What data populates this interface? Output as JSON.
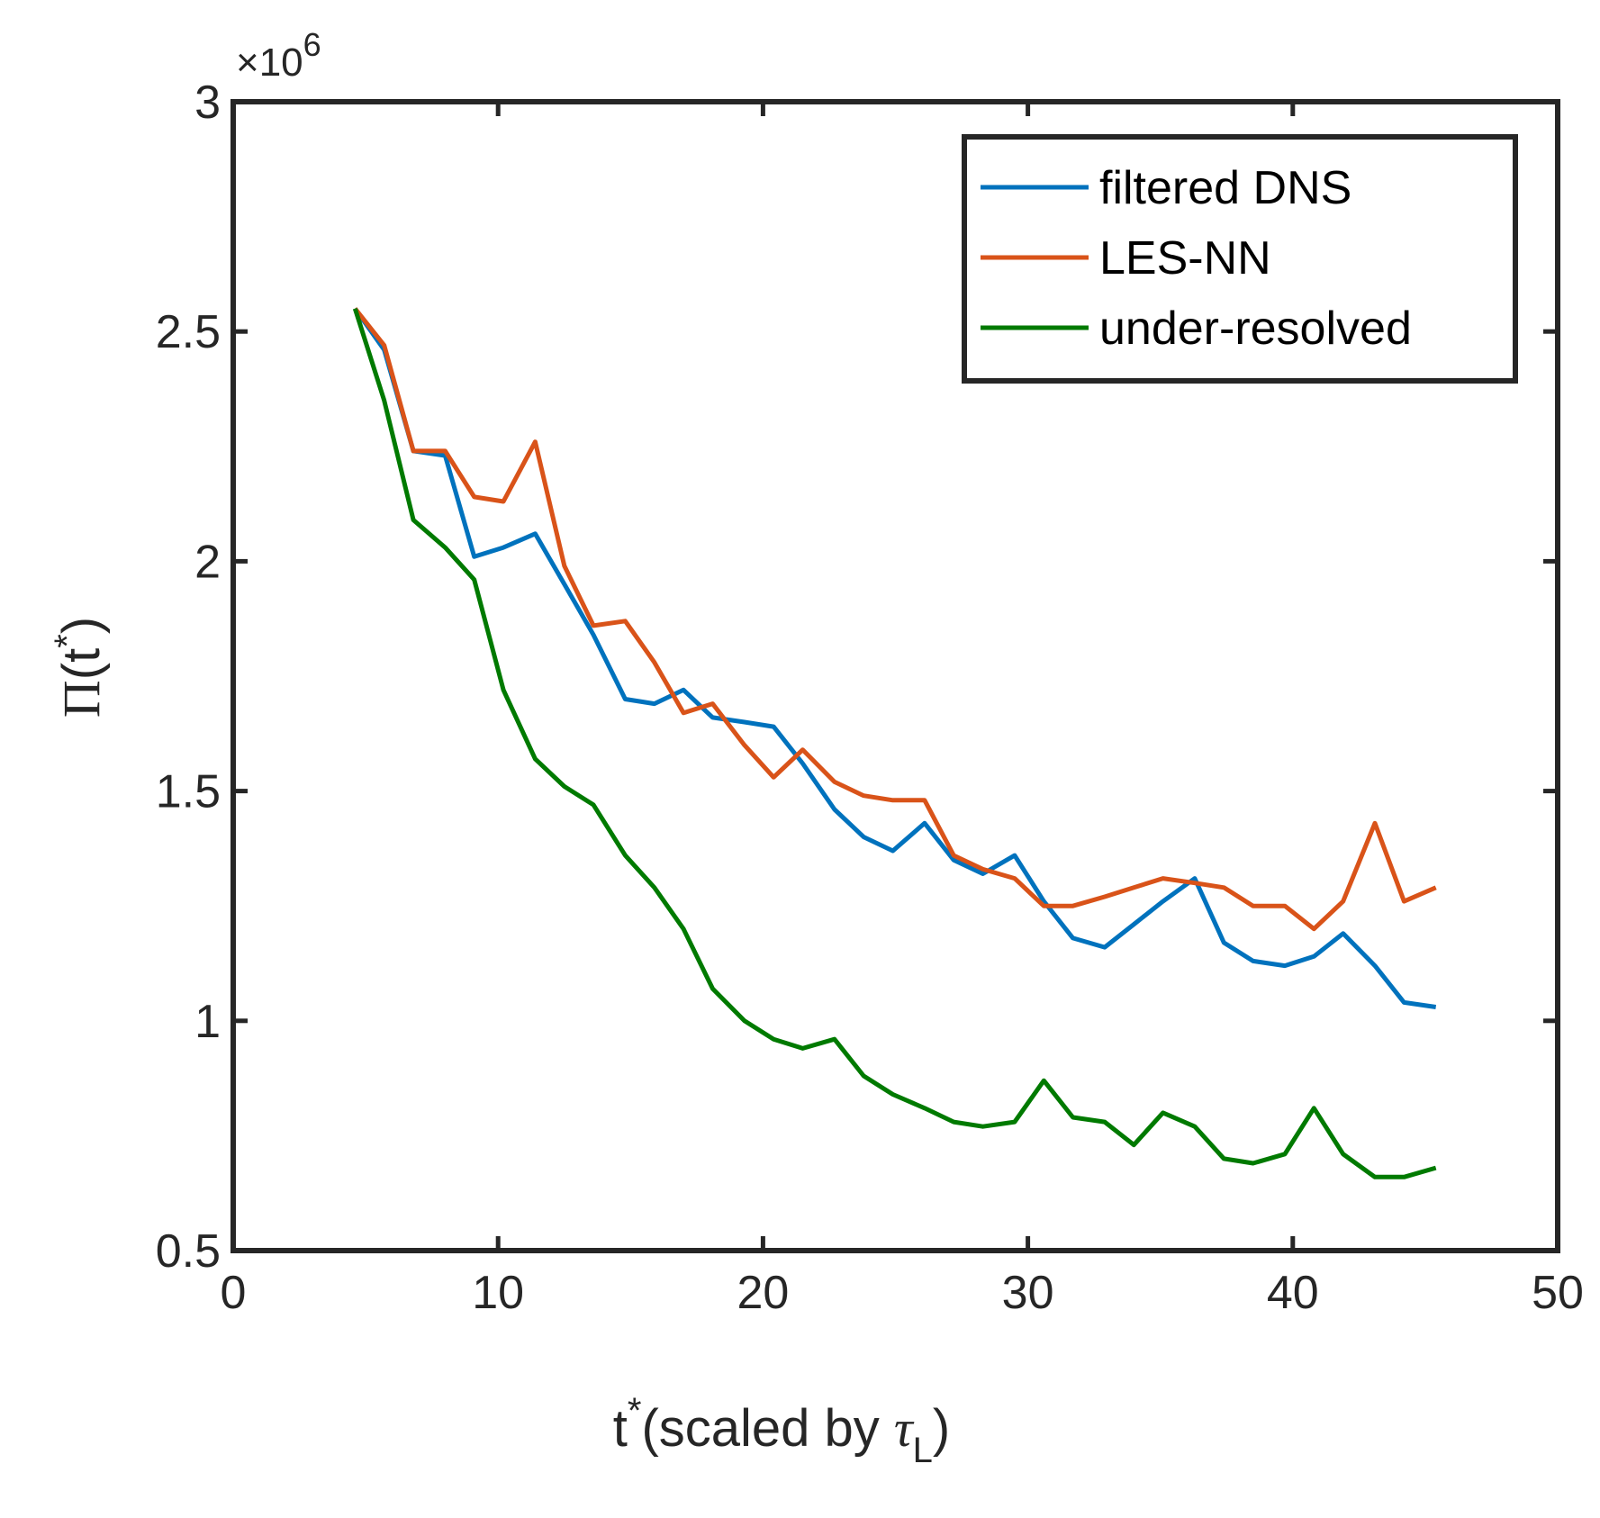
{
  "chart_data": {
    "type": "line",
    "xlabel": {
      "base": "t",
      "sup": "*",
      "rest": "(scaled by ",
      "greek": "τ",
      "sub": "L",
      "close": ")"
    },
    "ylabel": {
      "symbol": "Π",
      "open": "(t",
      "sup": "*",
      "close": ")"
    },
    "xlim": [
      0,
      50
    ],
    "ylim": [
      0.5,
      3
    ],
    "x_ticks": [
      0,
      10,
      20,
      30,
      40,
      50
    ],
    "x_tick_labels": [
      "0",
      "10",
      "20",
      "30",
      "40",
      "50"
    ],
    "y_ticks": [
      0.5,
      1,
      1.5,
      2,
      2.5,
      3
    ],
    "y_tick_labels": [
      "0.5",
      "1",
      "1.5",
      "2",
      "2.5",
      "3"
    ],
    "y_exponent": {
      "times": "×10",
      "power": "6"
    },
    "grid": false,
    "legend_position": "top-right",
    "series": [
      {
        "name": "filtered DNS",
        "color": "#0072BD",
        "x": [
          4.6,
          5.7,
          6.8,
          8.0,
          9.1,
          10.2,
          11.4,
          12.5,
          13.6,
          14.8,
          15.9,
          17.0,
          18.1,
          19.3,
          20.4,
          21.5,
          22.7,
          23.8,
          24.9,
          26.1,
          27.2,
          28.3,
          29.5,
          30.6,
          31.7,
          32.9,
          34.0,
          35.1,
          36.3,
          37.4,
          38.5,
          39.7,
          40.8,
          41.9,
          43.1,
          44.2,
          45.4
        ],
        "y": [
          2.55,
          2.46,
          2.24,
          2.23,
          2.01,
          2.03,
          2.06,
          1.95,
          1.84,
          1.7,
          1.69,
          1.72,
          1.66,
          1.65,
          1.64,
          1.56,
          1.46,
          1.4,
          1.37,
          1.43,
          1.35,
          1.32,
          1.36,
          1.26,
          1.18,
          1.16,
          1.21,
          1.26,
          1.31,
          1.17,
          1.13,
          1.12,
          1.14,
          1.19,
          1.12,
          1.04,
          1.03
        ]
      },
      {
        "name": "LES-NN",
        "color": "#D95319",
        "x": [
          4.6,
          5.7,
          6.8,
          8.0,
          9.1,
          10.2,
          11.4,
          12.5,
          13.6,
          14.8,
          15.9,
          17.0,
          18.1,
          19.3,
          20.4,
          21.5,
          22.7,
          23.8,
          24.9,
          26.1,
          27.2,
          28.3,
          29.5,
          30.6,
          31.7,
          32.9,
          34.0,
          35.1,
          36.3,
          37.4,
          38.5,
          39.7,
          40.8,
          41.9,
          43.1,
          44.2,
          45.4
        ],
        "y": [
          2.55,
          2.47,
          2.24,
          2.24,
          2.14,
          2.13,
          2.26,
          1.99,
          1.86,
          1.87,
          1.78,
          1.67,
          1.69,
          1.6,
          1.53,
          1.59,
          1.52,
          1.49,
          1.48,
          1.48,
          1.36,
          1.33,
          1.31,
          1.25,
          1.25,
          1.27,
          1.29,
          1.31,
          1.3,
          1.29,
          1.25,
          1.25,
          1.2,
          1.26,
          1.43,
          1.26,
          1.29
        ]
      },
      {
        "name": "under-resolved",
        "color": "#007A00",
        "x": [
          4.6,
          5.7,
          6.8,
          8.0,
          9.1,
          10.2,
          11.4,
          12.5,
          13.6,
          14.8,
          15.9,
          17.0,
          18.1,
          19.3,
          20.4,
          21.5,
          22.7,
          23.8,
          24.9,
          26.1,
          27.2,
          28.3,
          29.5,
          30.6,
          31.7,
          32.9,
          34.0,
          35.1,
          36.3,
          37.4,
          38.5,
          39.7,
          40.8,
          41.9,
          43.1,
          44.2,
          45.4
        ],
        "y": [
          2.55,
          2.35,
          2.09,
          2.03,
          1.96,
          1.72,
          1.57,
          1.51,
          1.47,
          1.36,
          1.29,
          1.2,
          1.07,
          1.0,
          0.96,
          0.94,
          0.96,
          0.88,
          0.84,
          0.81,
          0.78,
          0.77,
          0.78,
          0.87,
          0.79,
          0.78,
          0.73,
          0.8,
          0.77,
          0.7,
          0.69,
          0.71,
          0.81,
          0.71,
          0.66,
          0.66,
          0.68
        ]
      }
    ]
  }
}
